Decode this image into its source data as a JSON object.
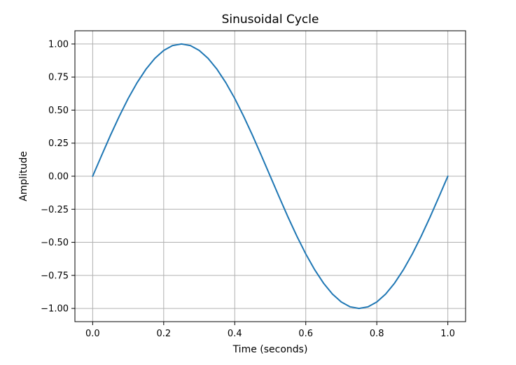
{
  "chart_data": {
    "type": "line",
    "title": "Sinusoidal Cycle",
    "xlabel": "Time (seconds)",
    "ylabel": "Amplitude",
    "xlim": [
      -0.05,
      1.05
    ],
    "ylim": [
      -1.1,
      1.1
    ],
    "grid": true,
    "x_ticks": [
      0.0,
      0.2,
      0.4,
      0.6,
      0.8,
      1.0
    ],
    "x_tick_labels": [
      "0.0",
      "0.2",
      "0.4",
      "0.6",
      "0.8",
      "1.0"
    ],
    "y_ticks": [
      1.0,
      0.75,
      0.5,
      0.25,
      0.0,
      -0.25,
      -0.5,
      -0.75,
      -1.0
    ],
    "y_tick_labels": [
      "1.00",
      "0.75",
      "0.50",
      "0.25",
      "0.00",
      "−0.25",
      "−0.50",
      "−0.75",
      "−1.00"
    ],
    "series": [
      {
        "color": "#1f77b4",
        "x": [
          0.0,
          0.025,
          0.05,
          0.075,
          0.1,
          0.125,
          0.15,
          0.175,
          0.2,
          0.225,
          0.25,
          0.275,
          0.3,
          0.325,
          0.35,
          0.375,
          0.4,
          0.425,
          0.45,
          0.475,
          0.5,
          0.525,
          0.55,
          0.575,
          0.6,
          0.625,
          0.65,
          0.675,
          0.7,
          0.725,
          0.75,
          0.775,
          0.8,
          0.825,
          0.85,
          0.875,
          0.9,
          0.925,
          0.95,
          0.975,
          1.0
        ],
        "y": [
          0.0,
          0.156,
          0.309,
          0.454,
          0.588,
          0.707,
          0.809,
          0.891,
          0.951,
          0.988,
          1.0,
          0.988,
          0.951,
          0.891,
          0.809,
          0.707,
          0.588,
          0.454,
          0.309,
          0.156,
          0.0,
          -0.156,
          -0.309,
          -0.454,
          -0.588,
          -0.707,
          -0.809,
          -0.891,
          -0.951,
          -0.988,
          -1.0,
          -0.988,
          -0.951,
          -0.891,
          -0.809,
          -0.707,
          -0.588,
          -0.454,
          -0.309,
          -0.156,
          0.0
        ]
      }
    ]
  }
}
